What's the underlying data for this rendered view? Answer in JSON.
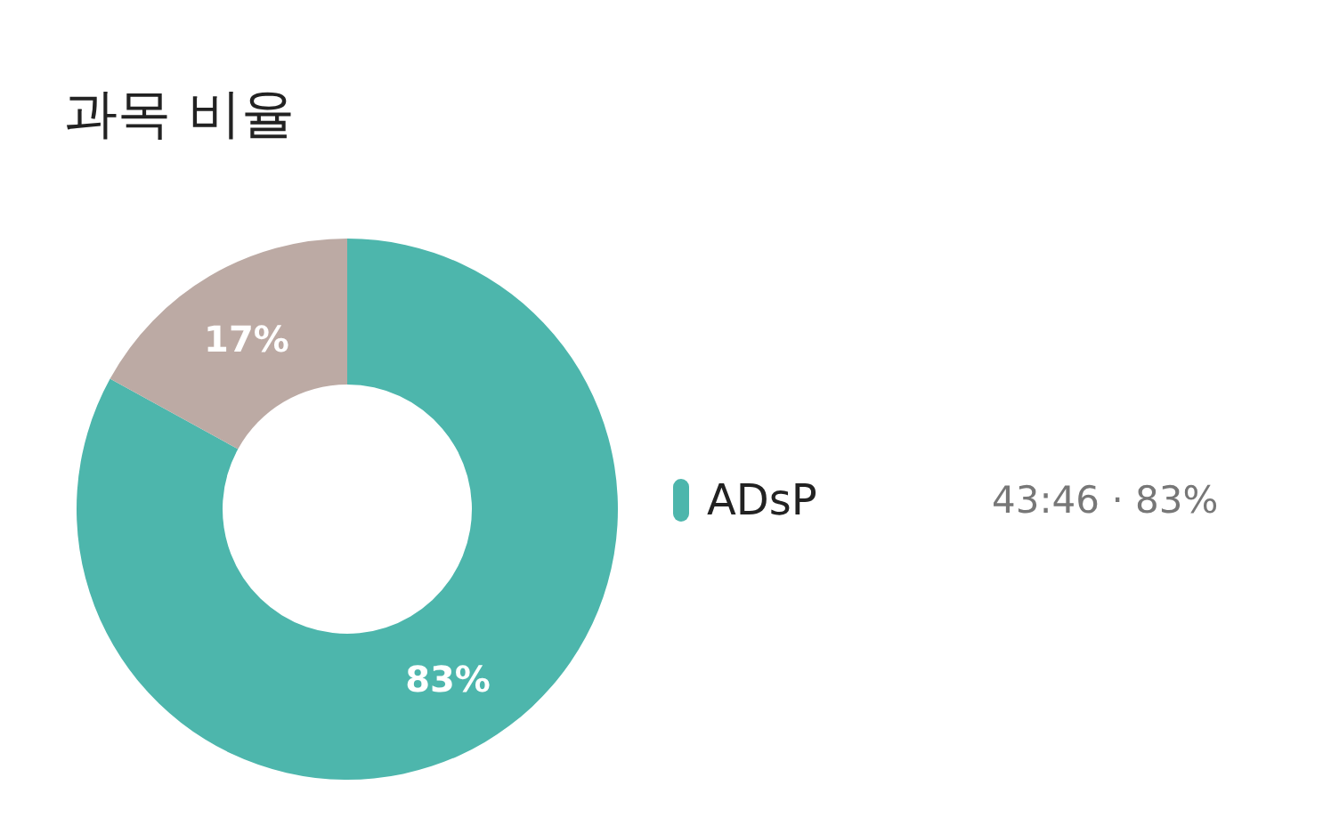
{
  "chart_data": {
    "type": "donut",
    "title": "과목 비율",
    "categories": [
      "ADsP",
      null
    ],
    "values": [
      83,
      17
    ],
    "colors": [
      "#4db6ac",
      "#bcaaa4"
    ],
    "value_labels": [
      "83%",
      "17%"
    ],
    "legend": "right",
    "annotations": [
      "43:46 · 83%"
    ]
  }
}
